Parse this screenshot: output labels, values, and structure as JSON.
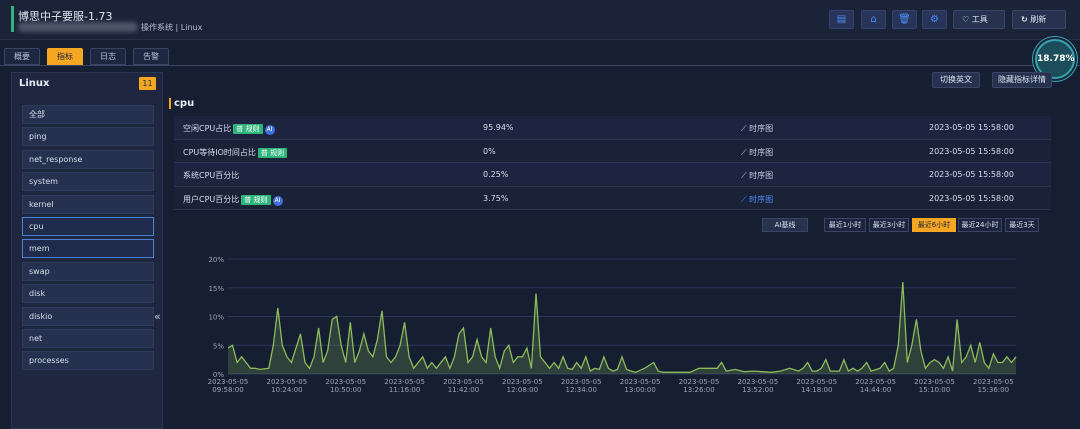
{
  "header": {
    "title": "博思中子要服-1.73",
    "subtitle": "操作系统 | Linux",
    "tools_label": "工具",
    "refresh_label": "刷新"
  },
  "tabs": [
    "概要",
    "指标",
    "日志",
    "告警"
  ],
  "gauge": {
    "value": "18.78%"
  },
  "sidebar": {
    "title": "Linux",
    "count": "11",
    "items": [
      "全部",
      "ping",
      "net_response",
      "system",
      "kernel",
      "cpu",
      "mem",
      "swap",
      "disk",
      "diskio",
      "net",
      "processes"
    ],
    "collapse_icon": "«"
  },
  "main": {
    "switch_lang": "切换英文",
    "hide_details": "隐藏指标详情",
    "section": "cpu",
    "metrics": [
      {
        "name": "空闲CPU占比",
        "tag": "普 规则",
        "ai": "AI",
        "value": "95.94%",
        "trend": "时序图",
        "time": "2023-05-05 15:58:00"
      },
      {
        "name": "CPU等待IO时间占比",
        "tag": "普 规则",
        "ai": "",
        "value": "0%",
        "trend": "时序图",
        "time": "2023-05-05 15:58:00"
      },
      {
        "name": "系统CPU百分比",
        "tag": "",
        "ai": "",
        "value": "0.25%",
        "trend": "时序图",
        "time": "2023-05-05 15:58:00"
      },
      {
        "name": "用户CPU百分比",
        "tag": "普 规则",
        "ai": "AI",
        "value": "3.75%",
        "trend": "时序图",
        "time": "2023-05-05 15:58:00"
      }
    ],
    "ai_baseline": "AI基线",
    "ranges": [
      "最近1小时",
      "最近3小时",
      "最近6小时",
      "最近24小时",
      "最近3天"
    ]
  },
  "colors": {
    "accent": "#f5a623",
    "line": "#8dbb5a",
    "tag": "#2fb57b"
  },
  "chart_data": {
    "type": "area",
    "ylim": [
      0,
      20
    ],
    "yticks": [
      "0%",
      "5%",
      "10%",
      "15%",
      "20%"
    ],
    "x_date": "2023-05-05",
    "xticks": [
      "09:58:00",
      "10:24:00",
      "10:50:00",
      "11:16:00",
      "11:42:00",
      "12:08:00",
      "12:34:00",
      "13:00:00",
      "13:26:00",
      "13:52:00",
      "14:18:00",
      "14:44:00",
      "15:10:00",
      "15:36:00"
    ],
    "x_minutes": [
      0,
      26,
      52,
      78,
      104,
      130,
      156,
      182,
      208,
      234,
      260,
      286,
      312,
      338
    ],
    "series": [
      {
        "name": "用户CPU百分比",
        "points": [
          [
            0,
            4.5
          ],
          [
            2,
            5
          ],
          [
            4,
            2
          ],
          [
            6,
            3
          ],
          [
            8,
            2
          ],
          [
            10,
            1
          ],
          [
            12,
            1
          ],
          [
            14,
            0.8
          ],
          [
            18,
            1
          ],
          [
            20,
            5
          ],
          [
            22,
            11.5
          ],
          [
            24,
            5
          ],
          [
            26,
            3
          ],
          [
            28,
            2
          ],
          [
            32,
            7
          ],
          [
            34,
            2
          ],
          [
            36,
            1
          ],
          [
            38,
            3
          ],
          [
            40,
            8
          ],
          [
            42,
            2
          ],
          [
            44,
            4
          ],
          [
            46,
            9.5
          ],
          [
            48,
            10
          ],
          [
            50,
            5
          ],
          [
            52,
            2
          ],
          [
            54,
            9
          ],
          [
            56,
            2
          ],
          [
            58,
            4
          ],
          [
            60,
            7
          ],
          [
            62,
            4
          ],
          [
            64,
            3
          ],
          [
            66,
            6
          ],
          [
            68,
            11
          ],
          [
            70,
            3
          ],
          [
            72,
            2
          ],
          [
            74,
            3
          ],
          [
            76,
            5
          ],
          [
            78,
            9
          ],
          [
            80,
            3
          ],
          [
            82,
            1
          ],
          [
            84,
            2
          ],
          [
            86,
            3
          ],
          [
            88,
            1
          ],
          [
            90,
            2
          ],
          [
            92,
            1
          ],
          [
            96,
            3
          ],
          [
            98,
            1
          ],
          [
            100,
            3
          ],
          [
            102,
            7
          ],
          [
            104,
            8
          ],
          [
            106,
            2
          ],
          [
            108,
            3
          ],
          [
            110,
            6
          ],
          [
            112,
            3
          ],
          [
            114,
            2
          ],
          [
            116,
            8
          ],
          [
            118,
            3
          ],
          [
            120,
            1
          ],
          [
            122,
            4
          ],
          [
            124,
            5
          ],
          [
            126,
            2
          ],
          [
            128,
            3
          ],
          [
            130,
            3
          ],
          [
            132,
            4.5
          ],
          [
            134,
            1
          ],
          [
            136,
            14
          ],
          [
            138,
            3
          ],
          [
            140,
            2
          ],
          [
            142,
            1
          ],
          [
            144,
            2
          ],
          [
            146,
            1
          ],
          [
            148,
            3
          ],
          [
            150,
            1
          ],
          [
            152,
            0.8
          ],
          [
            154,
            2
          ],
          [
            156,
            1
          ],
          [
            158,
            3
          ],
          [
            160,
            0.5
          ],
          [
            162,
            1
          ],
          [
            164,
            0.8
          ],
          [
            166,
            3
          ],
          [
            168,
            1
          ],
          [
            170,
            0.5
          ],
          [
            172,
            0.8
          ],
          [
            174,
            3
          ],
          [
            176,
            0.8
          ],
          [
            178,
            0.5
          ],
          [
            180,
            0.3
          ],
          [
            184,
            1
          ],
          [
            188,
            2
          ],
          [
            190,
            0.5
          ],
          [
            192,
            0.3
          ],
          [
            196,
            0.3
          ],
          [
            200,
            0.3
          ],
          [
            204,
            0.3
          ],
          [
            208,
            1
          ],
          [
            212,
            1
          ],
          [
            216,
            1
          ],
          [
            218,
            2
          ],
          [
            220,
            0.5
          ],
          [
            224,
            0.8
          ],
          [
            228,
            0.4
          ],
          [
            232,
            0.5
          ],
          [
            236,
            0.4
          ],
          [
            240,
            0.3
          ],
          [
            244,
            0.5
          ],
          [
            248,
            1
          ],
          [
            252,
            0.5
          ],
          [
            254,
            1
          ],
          [
            256,
            2
          ],
          [
            258,
            0.5
          ],
          [
            260,
            0.5
          ],
          [
            262,
            1
          ],
          [
            264,
            2.5
          ],
          [
            266,
            0.5
          ],
          [
            270,
            0.5
          ],
          [
            272,
            2.5
          ],
          [
            274,
            0.5
          ],
          [
            276,
            1
          ],
          [
            278,
            0.5
          ],
          [
            280,
            1
          ],
          [
            282,
            2
          ],
          [
            284,
            0.5
          ],
          [
            288,
            1
          ],
          [
            290,
            2
          ],
          [
            292,
            0.5
          ],
          [
            294,
            1
          ],
          [
            296,
            5
          ],
          [
            298,
            16
          ],
          [
            300,
            2
          ],
          [
            302,
            5
          ],
          [
            304,
            9.5
          ],
          [
            306,
            4
          ],
          [
            308,
            1
          ],
          [
            310,
            2
          ],
          [
            312,
            2.5
          ],
          [
            314,
            2
          ],
          [
            316,
            1
          ],
          [
            318,
            3
          ],
          [
            320,
            0.5
          ],
          [
            322,
            9.5
          ],
          [
            324,
            2
          ],
          [
            326,
            3
          ],
          [
            328,
            5
          ],
          [
            330,
            2
          ],
          [
            332,
            5.5
          ],
          [
            334,
            2
          ],
          [
            336,
            1
          ],
          [
            338,
            3.5
          ],
          [
            340,
            2
          ],
          [
            342,
            2
          ],
          [
            344,
            3
          ],
          [
            346,
            2
          ],
          [
            348,
            3
          ]
        ]
      }
    ]
  }
}
